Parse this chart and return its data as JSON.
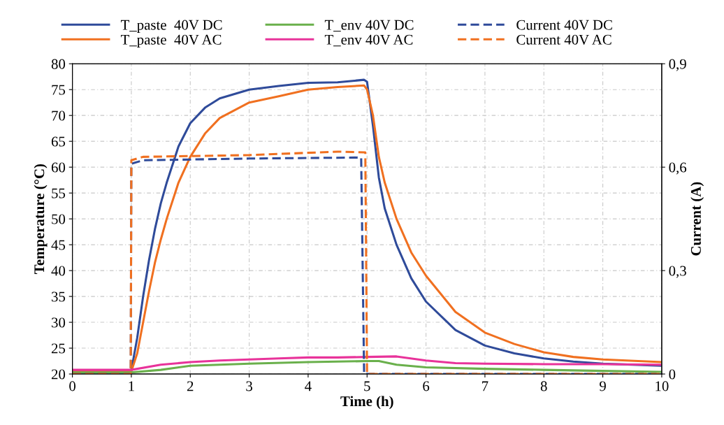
{
  "chart_data": {
    "type": "line",
    "xlabel": "Time (h)",
    "ylabel": "Temperature (°C)",
    "y2label": "Current (A)",
    "xlim": [
      0,
      10
    ],
    "xticks": [
      0,
      1,
      2,
      3,
      4,
      5,
      6,
      7,
      8,
      9,
      10
    ],
    "ylim": [
      20,
      80
    ],
    "yticks": [
      20,
      25,
      30,
      35,
      40,
      45,
      50,
      55,
      60,
      65,
      70,
      75,
      80
    ],
    "y2lim": [
      0,
      0.9
    ],
    "y2ticks": [
      0,
      {
        "value": 0.3,
        "label": "0,3"
      },
      {
        "value": 0.6,
        "label": "0,6"
      },
      {
        "value": 0.9,
        "label": "0,9"
      }
    ],
    "grid": true,
    "legend": "top",
    "marker": "none",
    "series": [
      {
        "name": "T_paste  40V DC",
        "color": "#2f4b9a",
        "line_style": "solid",
        "x": [
          0,
          1,
          1.1,
          1.2,
          1.3,
          1.4,
          1.5,
          1.6,
          1.8,
          2,
          2.25,
          2.5,
          3,
          3.5,
          4,
          4.5,
          4.95,
          5,
          5.1,
          5.2,
          5.3,
          5.5,
          5.75,
          6,
          6.5,
          7,
          7.5,
          8,
          8.5,
          9,
          10
        ],
        "values": [
          20.7,
          20.7,
          27,
          35,
          42,
          48,
          53,
          57,
          64,
          68.5,
          71.5,
          73.3,
          75,
          75.7,
          76.3,
          76.4,
          76.9,
          76.5,
          68,
          58,
          52,
          45,
          38.5,
          34,
          28.5,
          25.5,
          24,
          23,
          22.4,
          22,
          21.6
        ]
      },
      {
        "name": "T_paste  40V AC",
        "color": "#f07020",
        "line_style": "solid",
        "x": [
          0,
          1,
          1.1,
          1.2,
          1.3,
          1.4,
          1.5,
          1.6,
          1.8,
          2,
          2.25,
          2.5,
          3,
          3.5,
          4,
          4.5,
          4.95,
          5,
          5.1,
          5.2,
          5.3,
          5.5,
          5.75,
          6,
          6.5,
          7,
          7.5,
          8,
          8.5,
          9,
          10
        ],
        "values": [
          20.5,
          20.5,
          24,
          30,
          36,
          41.5,
          46,
          50,
          57,
          62,
          66.5,
          69.5,
          72.5,
          73.7,
          75,
          75.5,
          75.8,
          75,
          70,
          62,
          57,
          50,
          43.5,
          39,
          32,
          28,
          25.8,
          24.2,
          23.3,
          22.8,
          22.3
        ]
      },
      {
        "name": "T_env 40V DC",
        "color": "#6ab04c",
        "line_style": "solid",
        "x": [
          0,
          1,
          1.5,
          2,
          2.5,
          3,
          4,
          5,
          5.2,
          5.5,
          6,
          7,
          8,
          9,
          10
        ],
        "values": [
          20.3,
          20.3,
          20.8,
          21.6,
          21.8,
          22,
          22.3,
          22.5,
          22.5,
          21.8,
          21.3,
          21,
          20.8,
          20.6,
          20.4
        ]
      },
      {
        "name": "T_env 40V AC",
        "color": "#e8339a",
        "line_style": "solid",
        "x": [
          0,
          1,
          1.5,
          2,
          2.5,
          3,
          3.5,
          4,
          4.5,
          5,
          5.5,
          6,
          6.5,
          7,
          8,
          9,
          10
        ],
        "values": [
          20.8,
          20.8,
          21.8,
          22.3,
          22.6,
          22.8,
          23,
          23.2,
          23.2,
          23.3,
          23.4,
          22.6,
          22.1,
          22,
          21.9,
          21.9,
          21.8
        ]
      },
      {
        "name": "Current 40V DC",
        "color": "#2f4b9a",
        "line_style": "dashed",
        "axis": "y2",
        "x": [
          0,
          0.99,
          1,
          1.2,
          3,
          4.9,
          4.95,
          10
        ],
        "values": [
          0,
          0,
          0.61,
          0.62,
          0.625,
          0.628,
          0,
          0
        ]
      },
      {
        "name": "Current 40V AC",
        "color": "#f07020",
        "line_style": "dashed",
        "axis": "y2",
        "x": [
          0,
          0.99,
          1,
          1.2,
          3,
          4.5,
          4.97,
          5,
          10
        ],
        "values": [
          0,
          0,
          0.62,
          0.63,
          0.635,
          0.645,
          0.643,
          0,
          0
        ]
      }
    ]
  }
}
